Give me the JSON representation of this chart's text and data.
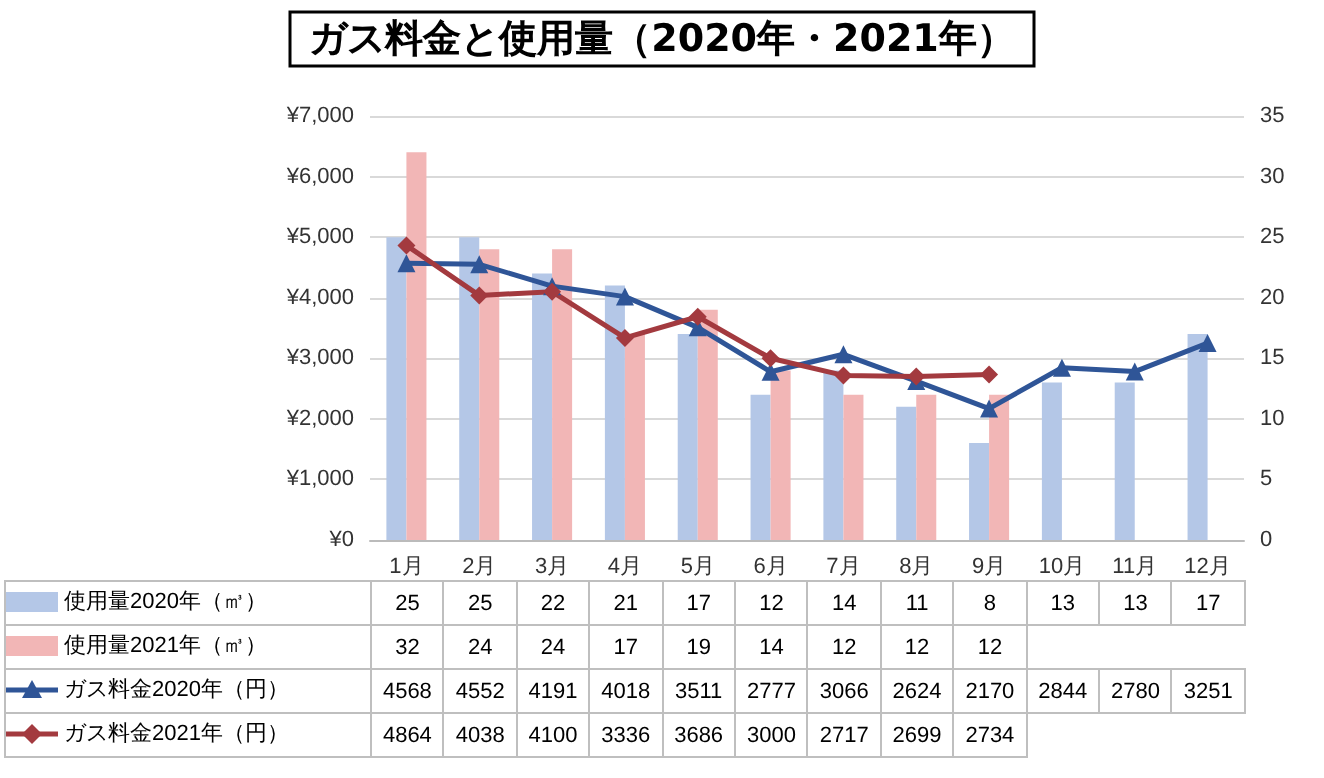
{
  "chart_data": {
    "type": "bar",
    "title": "ガス料金と使用量（2020年・2021年）",
    "categories": [
      "1月",
      "2月",
      "3月",
      "4月",
      "5月",
      "6月",
      "7月",
      "8月",
      "9月",
      "10月",
      "11月",
      "12月"
    ],
    "series": [
      {
        "name": "使用量2020年（㎥）",
        "axis": "y2",
        "color": "#b4c7e7",
        "values": [
          25,
          25,
          22,
          21,
          17,
          12,
          14,
          11,
          8,
          13,
          13,
          17
        ]
      },
      {
        "name": "使用量2021年（㎥）",
        "axis": "y2",
        "color": "#f2b6b6",
        "values": [
          32,
          24,
          24,
          17,
          19,
          14,
          12,
          12,
          12,
          null,
          null,
          null
        ]
      },
      {
        "name": "ガス料金2020年（円）",
        "type": "line",
        "marker": "triangle",
        "color": "#2f5597",
        "values": [
          4568,
          4552,
          4191,
          4018,
          3511,
          2777,
          3066,
          2624,
          2170,
          2844,
          2780,
          3251
        ]
      },
      {
        "name": "ガス料金2021年（円）",
        "type": "line",
        "marker": "diamond",
        "color": "#a33a3f",
        "values": [
          4864,
          4038,
          4100,
          3336,
          3686,
          3000,
          2717,
          2699,
          2734,
          null,
          null,
          null
        ]
      }
    ],
    "ylim": [
      0,
      7000
    ],
    "yticks": [
      {
        "value": 0,
        "label": "¥0"
      },
      {
        "value": 1000,
        "label": "¥1,000"
      },
      {
        "value": 2000,
        "label": "¥2,000"
      },
      {
        "value": 3000,
        "label": "¥3,000"
      },
      {
        "value": 4000,
        "label": "¥4,000"
      },
      {
        "value": 5000,
        "label": "¥5,000"
      },
      {
        "value": 6000,
        "label": "¥6,000"
      },
      {
        "value": 7000,
        "label": "¥7,000"
      }
    ],
    "y2lim": [
      0,
      35
    ],
    "y2ticks": [
      0,
      5,
      10,
      15,
      20,
      25,
      30,
      35
    ],
    "grid": "y",
    "legend": "bottom",
    "data_labels": true
  }
}
